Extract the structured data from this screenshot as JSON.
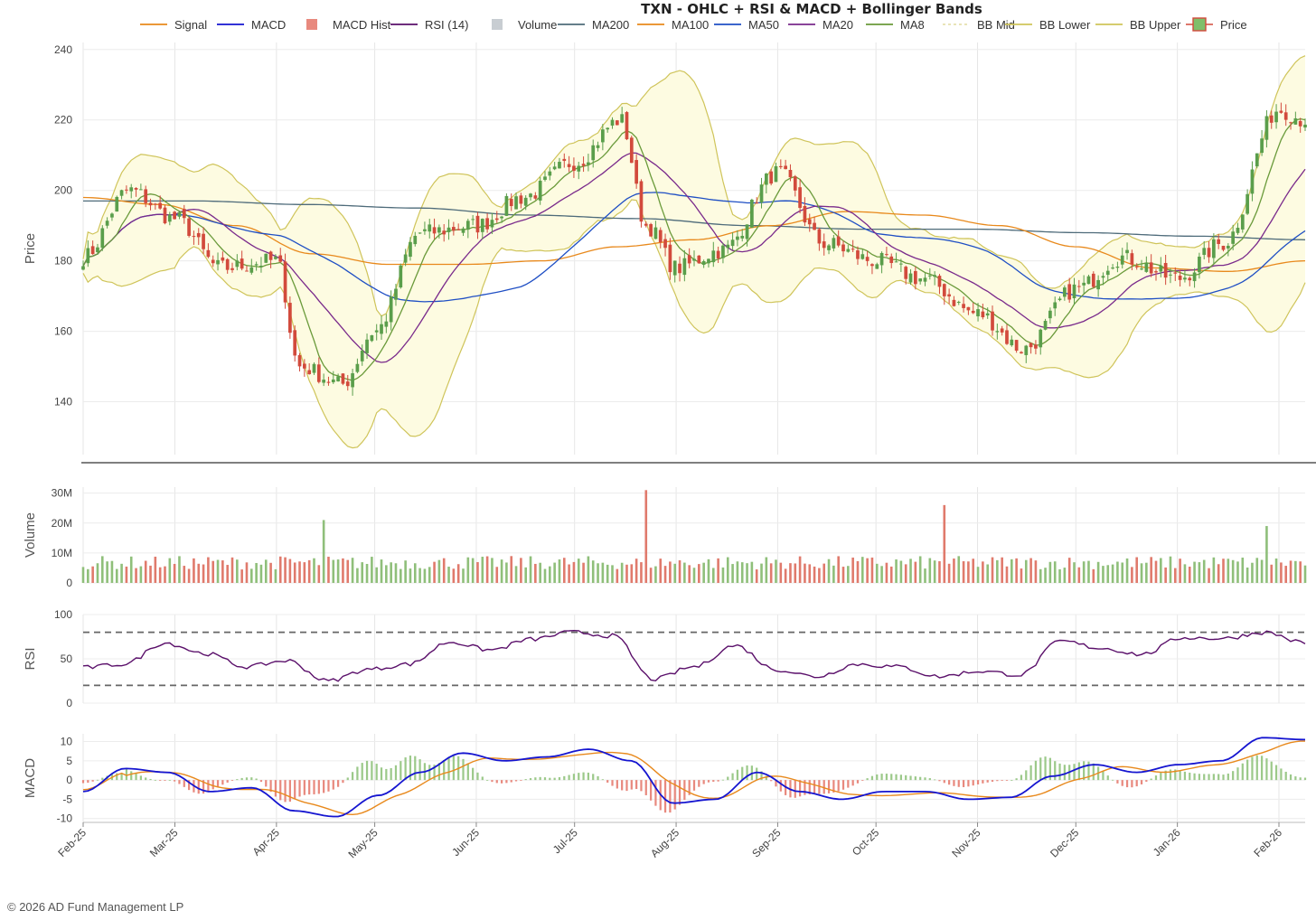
{
  "chart_data": {
    "type": "candlestick",
    "title": "TXN - OHLC + RSI & MACD + Bollinger Bands",
    "x_ticks": [
      "Feb-25",
      "Mar-25",
      "Apr-25",
      "May-25",
      "Jun-25",
      "Jul-25",
      "Aug-25",
      "Sep-25",
      "Oct-25",
      "Nov-25",
      "Dec-25",
      "Jan-26",
      "Feb-26"
    ],
    "legend": [
      "Signal",
      "MACD",
      "MACD Hist",
      "RSI (14)",
      "Volume",
      "MA200",
      "MA100",
      "MA50",
      "MA20",
      "MA8",
      "BB Mid",
      "BB Lower",
      "BB Upper",
      "Price"
    ],
    "panels": [
      {
        "name": "price",
        "ylabel": "Price",
        "ylim": [
          125,
          242
        ],
        "yticks": [
          140,
          160,
          180,
          200,
          220,
          240
        ]
      },
      {
        "name": "volume",
        "ylabel": "Volume",
        "ylim": [
          0,
          32
        ],
        "yticks": [
          "0",
          "10M",
          "20M",
          "30M"
        ]
      },
      {
        "name": "rsi",
        "ylabel": "RSI",
        "ylim": [
          0,
          100
        ],
        "yticks": [
          0,
          50,
          100
        ],
        "reference_lines": [
          20,
          80
        ]
      },
      {
        "name": "macd",
        "ylabel": "MACD",
        "ylim": [
          -11,
          12
        ],
        "yticks": [
          -10,
          -5,
          0,
          5,
          10
        ]
      }
    ],
    "price_anchor_dates": [
      "2025-02-01",
      "2025-02-15",
      "2025-03-01",
      "2025-03-15",
      "2025-04-01",
      "2025-04-08",
      "2025-04-21",
      "2025-05-01",
      "2025-05-15",
      "2025-06-01",
      "2025-06-15",
      "2025-07-01",
      "2025-07-15",
      "2025-07-23",
      "2025-08-01",
      "2025-08-15",
      "2025-09-01",
      "2025-09-15",
      "2025-10-01",
      "2025-10-15",
      "2025-11-01",
      "2025-11-15",
      "2025-12-01",
      "2025-12-15",
      "2026-01-01",
      "2026-01-15",
      "2026-02-01",
      "2026-02-09"
    ],
    "price_anchor_close": [
      181,
      200,
      192,
      178,
      180,
      150,
      145,
      160,
      188,
      190,
      198,
      208,
      220,
      190,
      178,
      183,
      205,
      185,
      180,
      175,
      165,
      155,
      172,
      181,
      175,
      185,
      223,
      220
    ],
    "ma200_anchor": [
      197,
      197,
      196,
      195,
      193,
      192,
      190,
      189,
      189,
      188,
      187,
      186
    ],
    "ma100_anchor": [
      198,
      196,
      190,
      182,
      179,
      179,
      180,
      184,
      186,
      190,
      194,
      193,
      190,
      184,
      178,
      177,
      180
    ],
    "rsi_anchor": [
      40,
      44,
      68,
      56,
      41,
      48,
      25,
      38,
      44,
      69,
      60,
      72,
      80,
      76,
      27,
      41,
      65,
      38,
      30,
      44,
      41,
      30,
      36,
      32,
      70,
      62,
      55,
      74,
      73,
      80,
      68
    ],
    "volume_spikes_M": [
      {
        "date": "2025-07-23",
        "value": 31
      },
      {
        "date": "2025-10-22",
        "value": 26
      },
      {
        "date": "2025-04-15",
        "value": 21
      },
      {
        "date": "2026-01-28",
        "value": 19
      }
    ],
    "macd_anchor": [
      -3,
      3,
      2,
      -3,
      -2,
      -8,
      -9.5,
      -4,
      2,
      7,
      5,
      6,
      8,
      5,
      -6,
      -5,
      2,
      -3,
      -5,
      -3,
      -3,
      -5,
      -4.5,
      1,
      4,
      2,
      4,
      5,
      11,
      10.5
    ],
    "signal_anchor": [
      -2.5,
      2,
      1.5,
      -2,
      -2.5,
      -5,
      -9,
      -4,
      1,
      5,
      5.5,
      6.5,
      7,
      -1,
      -4,
      1.5,
      0,
      -3,
      -4.5,
      -3.5,
      -4,
      -4.5,
      -1,
      3.5,
      1.5,
      3.5,
      6,
      9.5
    ]
  },
  "credit": "© 2026 AD Fund Management LP"
}
